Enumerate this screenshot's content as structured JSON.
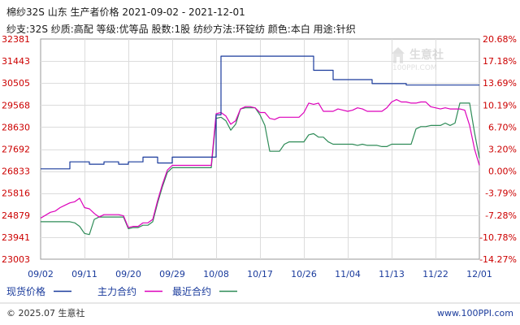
{
  "header": {
    "title": "棉纱32S 山东 生产者价格  2021-09-02 - 2021-12-01",
    "subtitle": "纱支:32S 纱质:高配 等级:优等品 股数:1股 纺纱方法:环锭纺 颜色:本白 用途:针织"
  },
  "watermark": {
    "brand": "生意社",
    "url": "100PPI.COM"
  },
  "footer": {
    "copyright": "© 2025.07 生意社",
    "url": "www.100PPI.com"
  },
  "colors": {
    "spot": "#1a3b9c",
    "main": "#dd00bb",
    "recent": "#2e8b57",
    "axis_left": "#cc0000",
    "axis_x": "#1a3b9c",
    "grid": "#dcdcdc"
  },
  "chart_data": {
    "type": "line",
    "categories": [
      "09/02",
      "09/11",
      "09/20",
      "09/29",
      "10/08",
      "10/17",
      "10/26",
      "11/04",
      "11/13",
      "11/22",
      "12/01"
    ],
    "ylim": [
      23003,
      32381
    ],
    "y_ticks": [
      "32381",
      "31443",
      "30505",
      "29568",
      "28630",
      "27692",
      "26833",
      "25816",
      "24879",
      "23941",
      "23003"
    ],
    "y2_ticks": [
      "20.68%",
      "17.18%",
      "13.69%",
      "10.19%",
      "6.70%",
      "3.20%",
      "0.00%",
      "-3.79%",
      "-7.28%",
      "-10.78%",
      "-14.27%"
    ],
    "grid": true,
    "legend_position": "bottom",
    "series": [
      {
        "name": "现货价格",
        "x": [
          0,
          6,
          6,
          10,
          10,
          13,
          13,
          16,
          16,
          18,
          18,
          21,
          21,
          24,
          24,
          27,
          27,
          36,
          36,
          37,
          37,
          56,
          56,
          60,
          60,
          68,
          68,
          75,
          75,
          90
        ],
        "values": [
          26850,
          26850,
          27150,
          27150,
          27050,
          27050,
          27150,
          27150,
          27050,
          27050,
          27150,
          27150,
          27350,
          27350,
          27100,
          27100,
          27350,
          27350,
          29150,
          29150,
          31650,
          31650,
          31050,
          31050,
          30650,
          30650,
          30480,
          30480,
          30420,
          30420
        ]
      },
      {
        "name": "主力合约",
        "x": [
          0,
          2,
          3,
          4,
          5,
          6,
          7,
          8,
          9,
          10,
          11,
          12,
          13,
          14,
          15,
          16,
          17,
          18,
          19,
          20,
          21,
          22,
          23,
          24,
          25,
          26,
          27,
          28,
          29,
          30,
          31,
          32,
          33,
          34,
          35,
          36,
          37,
          38,
          39,
          40,
          41,
          42,
          43,
          44,
          45,
          46,
          47,
          48,
          49,
          50,
          51,
          52,
          53,
          54,
          55,
          56,
          57,
          58,
          59,
          60,
          61,
          62,
          63,
          64,
          65,
          66,
          67,
          68,
          69,
          70,
          71,
          72,
          73,
          74,
          75,
          76,
          77,
          78,
          79,
          80,
          81,
          82,
          83,
          84,
          85,
          86,
          87,
          88,
          89,
          90
        ],
        "values": [
          24750,
          25000,
          25050,
          25200,
          25300,
          25400,
          25450,
          25600,
          25200,
          25150,
          24950,
          24800,
          24900,
          24900,
          24900,
          24900,
          24850,
          24350,
          24400,
          24400,
          24550,
          24550,
          24700,
          25500,
          26200,
          26800,
          27000,
          27000,
          27000,
          27000,
          27000,
          27000,
          27000,
          27000,
          27000,
          29200,
          29250,
          29100,
          28750,
          28900,
          29400,
          29500,
          29500,
          29450,
          29250,
          29250,
          29000,
          28950,
          29050,
          29050,
          29050,
          29050,
          29050,
          29250,
          29650,
          29600,
          29650,
          29300,
          29300,
          29300,
          29400,
          29350,
          29300,
          29350,
          29450,
          29400,
          29300,
          29300,
          29300,
          29300,
          29450,
          29700,
          29800,
          29700,
          29700,
          29650,
          29650,
          29700,
          29700,
          29500,
          29450,
          29400,
          29450,
          29400,
          29400,
          29400,
          29350,
          28700,
          27700,
          27000
        ],
        "label_note": ""
      },
      {
        "name": "最近合约",
        "x": [
          0,
          1,
          2,
          3,
          4,
          5,
          6,
          7,
          8,
          9,
          10,
          11,
          12,
          13,
          14,
          15,
          16,
          17,
          18,
          19,
          20,
          21,
          22,
          23,
          24,
          25,
          26,
          27,
          28,
          29,
          30,
          31,
          32,
          33,
          34,
          35,
          36,
          37,
          38,
          39,
          40,
          41,
          42,
          43,
          44,
          45,
          46,
          47,
          48,
          49,
          50,
          51,
          52,
          53,
          54,
          55,
          56,
          57,
          58,
          59,
          60,
          61,
          62,
          63,
          64,
          65,
          66,
          67,
          68,
          69,
          70,
          71,
          72,
          73,
          74,
          75,
          76,
          77,
          78,
          79,
          80,
          81,
          82,
          83,
          84,
          85,
          86,
          87,
          88,
          89,
          90
        ],
        "values": [
          24600,
          24600,
          24600,
          24600,
          24600,
          24600,
          24600,
          24550,
          24400,
          24100,
          24050,
          24700,
          24800,
          24800,
          24800,
          24800,
          24800,
          24800,
          24300,
          24350,
          24350,
          24450,
          24450,
          24600,
          25400,
          26100,
          26700,
          26900,
          26900,
          26900,
          26900,
          26900,
          26900,
          26900,
          26900,
          26900,
          29000,
          29050,
          28900,
          28500,
          28750,
          29400,
          29450,
          29450,
          29450,
          29150,
          28700,
          27600,
          27600,
          27600,
          27900,
          28000,
          28000,
          28000,
          28000,
          28300,
          28350,
          28200,
          28200,
          28000,
          27900,
          27900,
          27900,
          27900,
          27900,
          27850,
          27900,
          27850,
          27850,
          27850,
          27800,
          27800,
          27900,
          27900,
          27900,
          27900,
          27900,
          28550,
          28650,
          28650,
          28700,
          28700,
          28700,
          28800,
          28700,
          28800,
          29650,
          29650,
          29650,
          28400,
          27300
        ],
        "label_note": ""
      }
    ]
  }
}
